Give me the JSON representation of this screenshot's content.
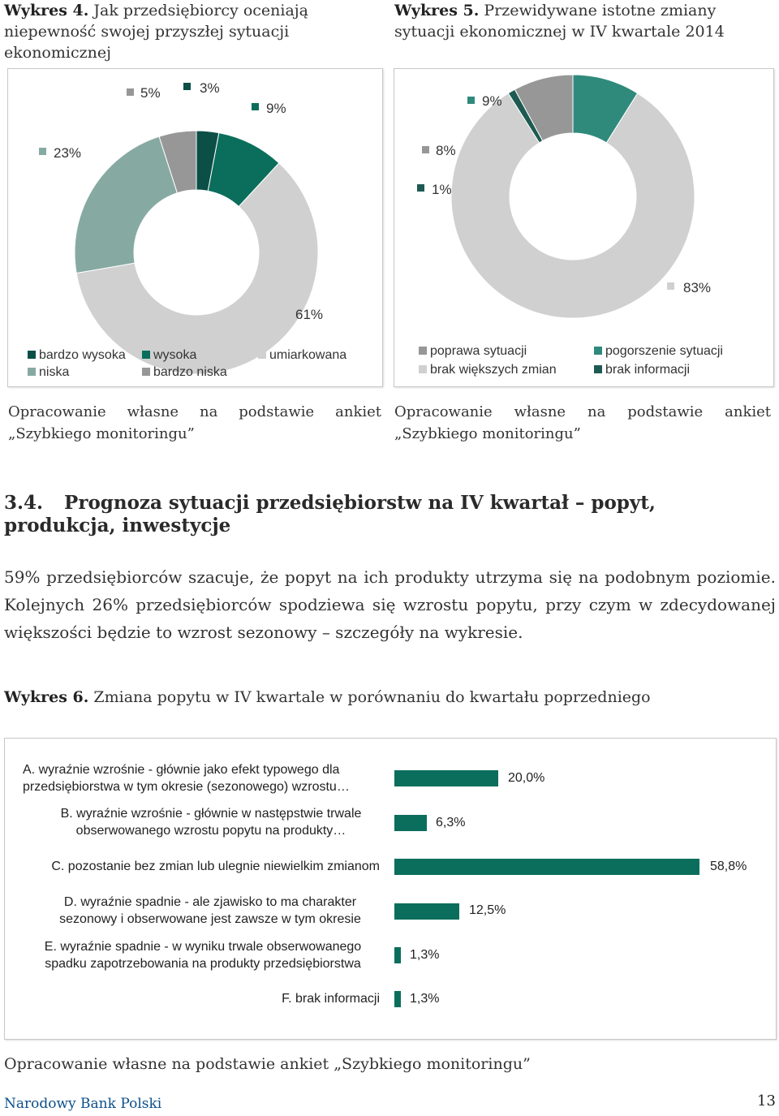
{
  "chart4": {
    "title_bold": "Wykres 4.",
    "title_rest": " Jak przedsiębiorcy oceniają niepewność swojej przyszłej sytuacji ekonomicznej",
    "source": "Opracowanie własne na podstawie ankiet „Szybkiego monitoringu”",
    "colors": {
      "bardzo wysoka": "#0b4f47",
      "wysoka": "#0b6e5c",
      "niska": "#86aaa2",
      "bardzo niska": "#979797",
      "umiarkowana": "#d0d0d0"
    }
  },
  "chart5": {
    "title_bold": "Wykres 5.",
    "title_rest": " Przewidywane istotne zmiany sytuacji ekonomicznej w IV kwartale 2014",
    "source": "Opracowanie własne na podstawie ankiet „Szybkiego monitoringu”",
    "colors": {
      "poprawa sytuacji": "#979797",
      "pogorszenie sytuacji": "#2f8a7c",
      "brak większych zmian": "#d0d0d0",
      "brak informacji": "#1e5a52"
    }
  },
  "chart_data": [
    {
      "type": "pie",
      "labels": [
        "bardzo wysoka",
        "wysoka",
        "umiarkowana",
        "niska",
        "bardzo niska"
      ],
      "values": [
        3,
        9,
        61,
        23,
        5
      ],
      "value_labels": [
        "3%",
        "9%",
        "61%",
        "23%",
        "5%"
      ],
      "legend": [
        "bardzo wysoka",
        "wysoka",
        "umiarkowana",
        "niska",
        "bardzo niska"
      ]
    },
    {
      "type": "pie",
      "labels": [
        "pogorszenie sytuacji",
        "brak większych zmian",
        "brak informacji",
        "poprawa sytuacji"
      ],
      "values": [
        9,
        83,
        1,
        8
      ],
      "value_labels": [
        "9%",
        "83%",
        "1%",
        "8%"
      ],
      "legend": [
        "poprawa sytuacji",
        "pogorszenie sytuacji",
        "brak większych zmian",
        "brak informacji"
      ]
    },
    {
      "type": "bar",
      "orientation": "horizontal",
      "categories": [
        "A. wyraźnie wzrośnie - głównie jako efekt typowego dla przedsiębiorstwa w tym okresie (sezonowego) wzrostu…",
        "B. wyraźnie wzrośnie - głównie w następstwie trwale obserwowanego wzrostu popytu na produkty…",
        "C. pozostanie bez zmian lub ulegnie niewielkim zmianom",
        "D. wyraźnie spadnie - ale zjawisko to ma charakter sezonowy i obserwowane jest zawsze w tym okresie",
        "E. wyraźnie spadnie - w wyniku trwale obserwowanego spadku zapotrzebowania na produkty przedsiębiorstwa",
        "F. brak informacji"
      ],
      "values": [
        20.0,
        6.3,
        58.8,
        12.5,
        1.3,
        1.3
      ],
      "value_labels": [
        "20,0%",
        "6,3%",
        "58,8%",
        "12,5%",
        "1,3%",
        "1,3%"
      ],
      "xlim": [
        0,
        60
      ]
    }
  ],
  "section": {
    "number": "3.4.",
    "title": "Prognoza sytuacji przedsiębiorstw na IV kwartał – popyt, produkcja, inwestycje",
    "paragraph": "59% przedsiębiorców szacuje, że popyt na ich produkty utrzyma się na podobnym poziomie. Kolejnych 26% przedsiębiorców spodziewa się wzrostu popytu, przy czym w zdecydowanej większości będzie to wzrost sezonowy – szczegóły na wykresie."
  },
  "chart6": {
    "title_bold": "Wykres 6.",
    "title_rest": " Zmiana popytu w IV kwartale w porównaniu do kwartału poprzedniego",
    "source": "Opracowanie własne na podstawie ankiet „Szybkiego monitoringu”",
    "bar_color": "#0b6e5c"
  },
  "footer": {
    "left": "Narodowy Bank Polski",
    "page": "13"
  }
}
